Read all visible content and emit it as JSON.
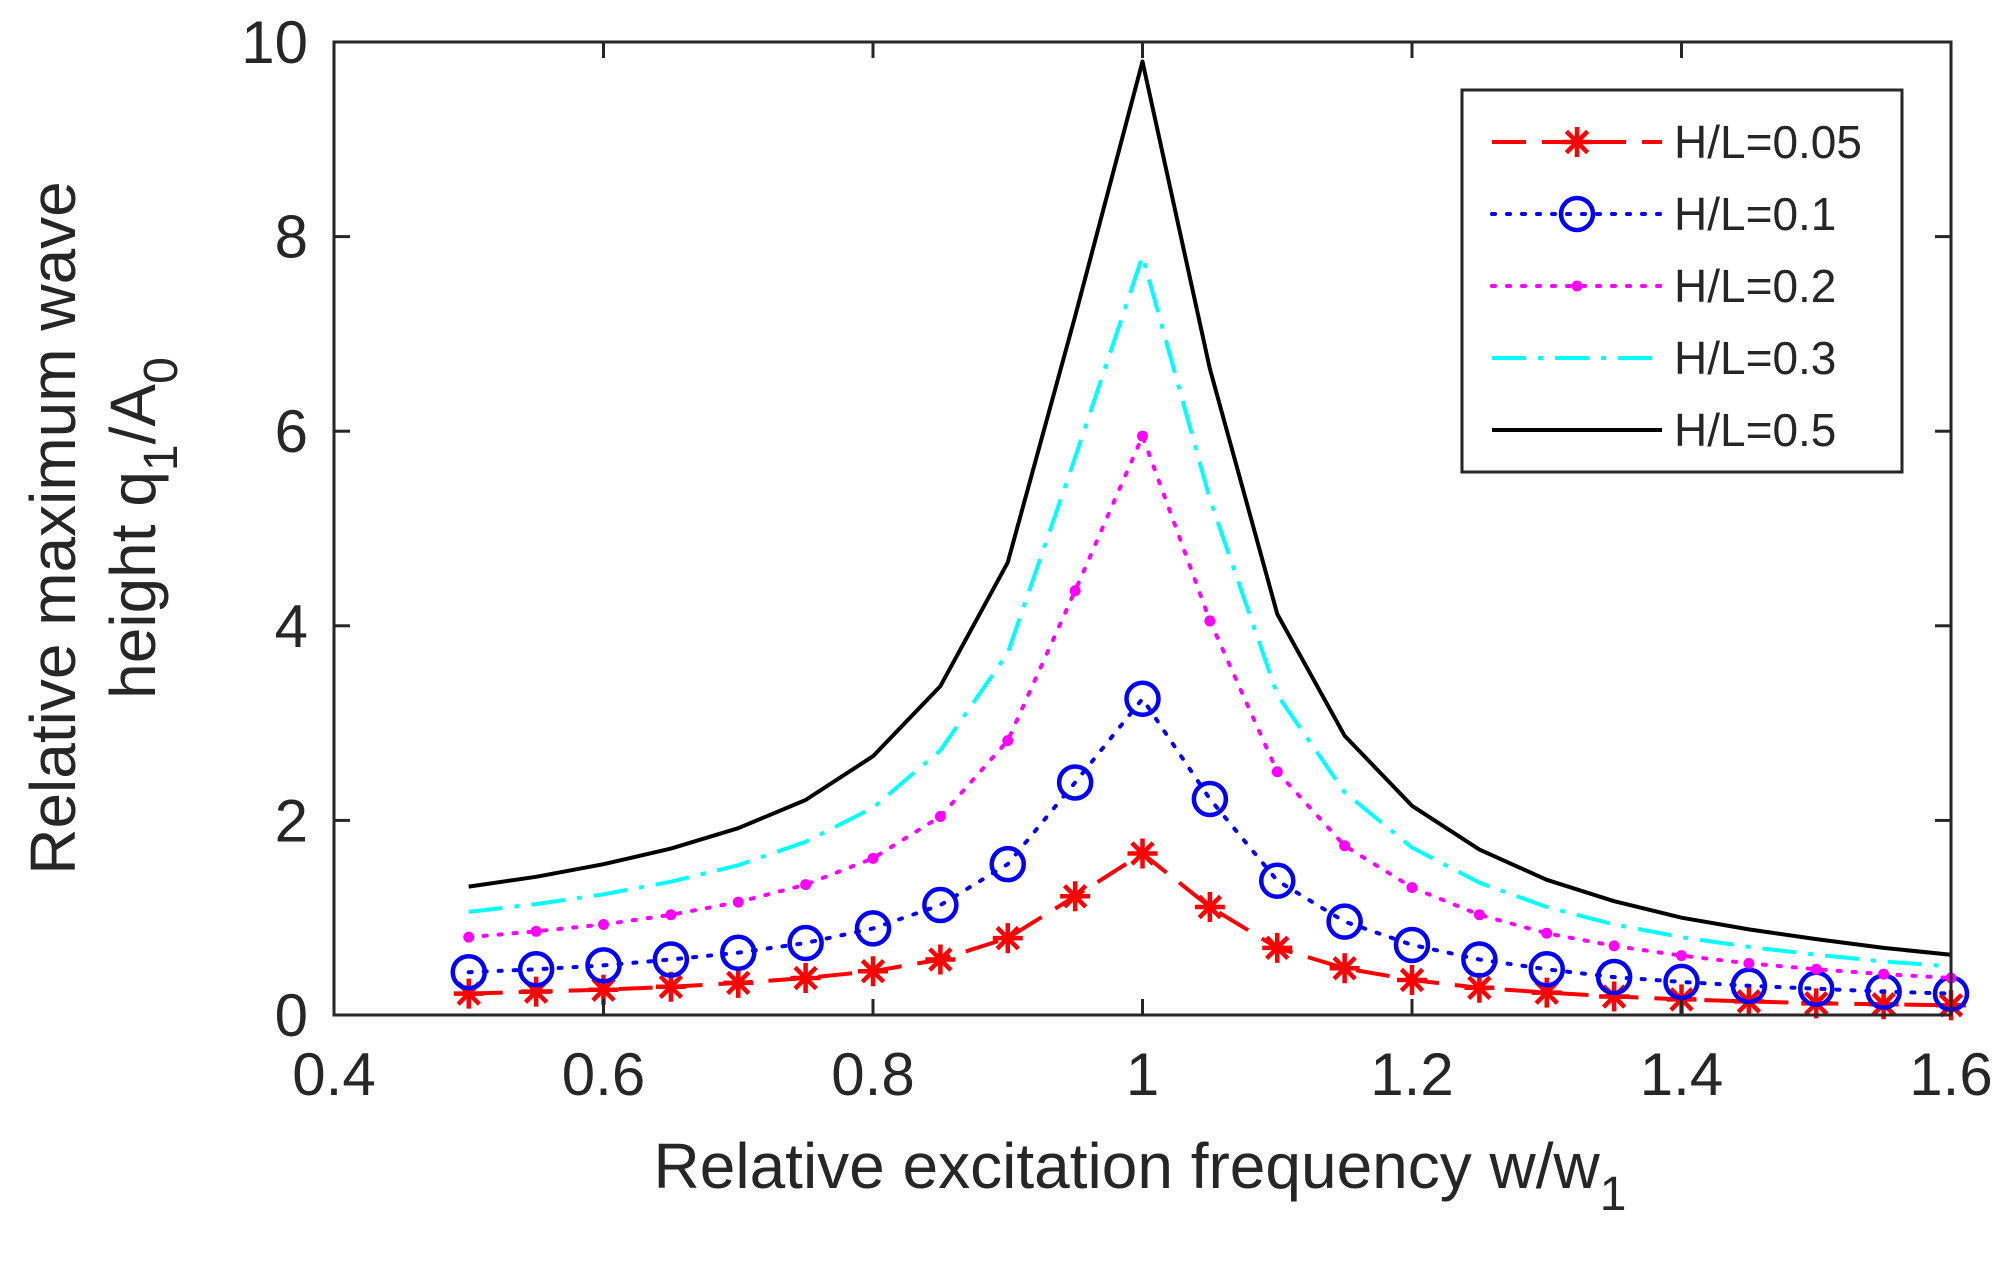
{
  "chart_data": {
    "type": "line",
    "title": "",
    "xlabel": "Relative excitation frequency w/w",
    "xlabel_subscript": "1",
    "ylabel_line1": "Relative maximum wave",
    "ylabel_line2_prefix": "height q",
    "ylabel_line2_sub1": "1",
    "ylabel_line2_mid": "/A",
    "ylabel_line2_sub2": "0",
    "xlim": [
      0.4,
      1.6
    ],
    "ylim": [
      0,
      10
    ],
    "xticks": [
      0.4,
      0.6,
      0.8,
      1.0,
      1.2,
      1.4,
      1.6
    ],
    "xtick_labels": [
      "0.4",
      "0.6",
      "0.8",
      "1",
      "1.2",
      "1.4",
      "1.6"
    ],
    "yticks": [
      0,
      2,
      4,
      6,
      8,
      10
    ],
    "ytick_labels": [
      "0",
      "2",
      "4",
      "6",
      "8",
      "10"
    ],
    "grid": false,
    "legend_position": "top-right",
    "x": [
      0.5,
      0.55,
      0.6,
      0.65,
      0.7,
      0.75,
      0.8,
      0.85,
      0.9,
      0.95,
      1.0,
      1.05,
      1.1,
      1.15,
      1.2,
      1.25,
      1.3,
      1.35,
      1.4,
      1.45,
      1.5,
      1.55,
      1.6
    ],
    "series": [
      {
        "name": "H/L=0.05",
        "color": "#ff0000",
        "line_style": "dashed",
        "marker": "asterisk",
        "values": [
          0.22,
          0.24,
          0.26,
          0.29,
          0.33,
          0.38,
          0.45,
          0.57,
          0.79,
          1.22,
          1.66,
          1.11,
          0.69,
          0.48,
          0.36,
          0.28,
          0.23,
          0.19,
          0.16,
          0.14,
          0.12,
          0.11,
          0.1
        ]
      },
      {
        "name": "H/L=0.1",
        "color": "#0000ff",
        "line_style": "dotted",
        "marker": "circle",
        "values": [
          0.44,
          0.47,
          0.51,
          0.57,
          0.64,
          0.74,
          0.89,
          1.13,
          1.55,
          2.39,
          3.25,
          2.22,
          1.38,
          0.96,
          0.72,
          0.57,
          0.47,
          0.39,
          0.34,
          0.3,
          0.27,
          0.24,
          0.22
        ]
      },
      {
        "name": "H/L=0.2",
        "color": "#ff00ff",
        "line_style": "dotted",
        "marker": "dot",
        "values": [
          0.8,
          0.86,
          0.93,
          1.03,
          1.16,
          1.34,
          1.61,
          2.04,
          2.82,
          4.36,
          5.95,
          4.05,
          2.5,
          1.74,
          1.31,
          1.03,
          0.84,
          0.71,
          0.61,
          0.53,
          0.47,
          0.42,
          0.38
        ]
      },
      {
        "name": "H/L=0.3",
        "color": "#00ffff",
        "line_style": "dashdot",
        "marker": "none",
        "values": [
          1.06,
          1.14,
          1.24,
          1.37,
          1.54,
          1.78,
          2.13,
          2.72,
          3.72,
          5.73,
          7.8,
          5.3,
          3.29,
          2.29,
          1.72,
          1.36,
          1.11,
          0.93,
          0.8,
          0.7,
          0.62,
          0.55,
          0.5
        ]
      },
      {
        "name": "H/L=0.5",
        "color": "#000000",
        "line_style": "solid",
        "marker": "none",
        "values": [
          1.32,
          1.42,
          1.55,
          1.71,
          1.92,
          2.21,
          2.66,
          3.38,
          4.65,
          7.18,
          9.8,
          6.64,
          4.12,
          2.87,
          2.15,
          1.7,
          1.39,
          1.17,
          1.0,
          0.88,
          0.78,
          0.69,
          0.62
        ]
      }
    ]
  }
}
